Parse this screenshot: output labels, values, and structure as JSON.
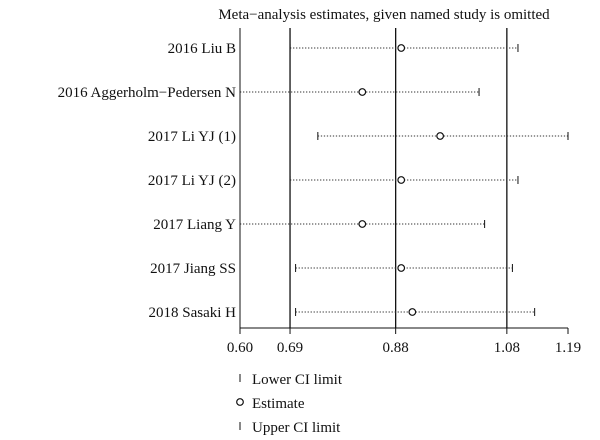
{
  "chart_data": {
    "type": "forest",
    "title": "Meta−analysis estimates, given named study is omitted",
    "xlim": [
      0.6,
      1.19
    ],
    "x_ticks": [
      "0.60",
      "0.69",
      "0.88",
      "1.08",
      "1.19"
    ],
    "x_tick_values": [
      0.6,
      0.69,
      0.88,
      1.08,
      1.19
    ],
    "reference_lines": [
      0.69,
      0.88,
      1.08
    ],
    "studies": [
      {
        "label": "2016 Liu B",
        "lower": 0.69,
        "estimate": 0.89,
        "upper": 1.1
      },
      {
        "label": "2016 Aggerholm−Pedersen N",
        "lower": 0.6,
        "estimate": 0.82,
        "upper": 1.03
      },
      {
        "label": "2017 Li YJ (1)",
        "lower": 0.74,
        "estimate": 0.96,
        "upper": 1.19
      },
      {
        "label": "2017 Li YJ (2)",
        "lower": 0.69,
        "estimate": 0.89,
        "upper": 1.1
      },
      {
        "label": "2017 Liang Y",
        "lower": 0.6,
        "estimate": 0.82,
        "upper": 1.04
      },
      {
        "label": "2017 Jiang SS",
        "lower": 0.7,
        "estimate": 0.89,
        "upper": 1.09
      },
      {
        "label": "2018 Sasaki H",
        "lower": 0.7,
        "estimate": 0.91,
        "upper": 1.13
      }
    ],
    "legend": {
      "position": "bottom",
      "entries": [
        "Lower CI limit",
        "Estimate",
        "Upper CI limit"
      ]
    }
  }
}
